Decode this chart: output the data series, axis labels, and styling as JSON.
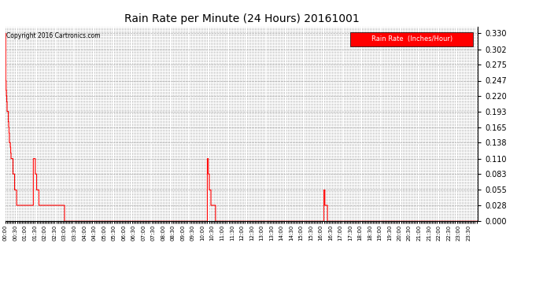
{
  "title": "Rain Rate per Minute (24 Hours) 20161001",
  "copyright_text": "Copyright 2016 Cartronics.com",
  "legend_label": "Rain Rate  (Inches/Hour)",
  "legend_bg": "#ff0000",
  "legend_text_color": "#ffffff",
  "line_color": "#ff0000",
  "background_color": "#ffffff",
  "grid_color": "#aaaaaa",
  "yticks": [
    0.0,
    0.028,
    0.055,
    0.083,
    0.11,
    0.138,
    0.165,
    0.193,
    0.22,
    0.247,
    0.275,
    0.302,
    0.33
  ],
  "ylim": [
    0.0,
    0.342
  ],
  "total_minutes": 1440,
  "rain_data": [
    [
      0,
      0.33
    ],
    [
      1,
      0.247
    ],
    [
      2,
      0.23
    ],
    [
      3,
      0.22
    ],
    [
      4,
      0.21
    ],
    [
      5,
      0.193
    ],
    [
      6,
      0.193
    ],
    [
      7,
      0.193
    ],
    [
      8,
      0.193
    ],
    [
      9,
      0.175
    ],
    [
      10,
      0.165
    ],
    [
      11,
      0.155
    ],
    [
      12,
      0.138
    ],
    [
      13,
      0.138
    ],
    [
      14,
      0.138
    ],
    [
      15,
      0.13
    ],
    [
      16,
      0.12
    ],
    [
      17,
      0.11
    ],
    [
      18,
      0.11
    ],
    [
      19,
      0.11
    ],
    [
      20,
      0.11
    ],
    [
      21,
      0.11
    ],
    [
      22,
      0.11
    ],
    [
      23,
      0.083
    ],
    [
      24,
      0.083
    ],
    [
      25,
      0.083
    ],
    [
      26,
      0.083
    ],
    [
      27,
      0.083
    ],
    [
      28,
      0.055
    ],
    [
      29,
      0.055
    ],
    [
      30,
      0.055
    ],
    [
      31,
      0.055
    ],
    [
      32,
      0.055
    ],
    [
      33,
      0.055
    ],
    [
      34,
      0.028
    ],
    [
      35,
      0.028
    ],
    [
      36,
      0.028
    ],
    [
      37,
      0.028
    ],
    [
      38,
      0.028
    ],
    [
      39,
      0.028
    ],
    [
      40,
      0.028
    ],
    [
      41,
      0.028
    ],
    [
      42,
      0.028
    ],
    [
      43,
      0.028
    ],
    [
      44,
      0.028
    ],
    [
      45,
      0.028
    ],
    [
      46,
      0.028
    ],
    [
      47,
      0.028
    ],
    [
      48,
      0.028
    ],
    [
      49,
      0.028
    ],
    [
      50,
      0.028
    ],
    [
      51,
      0.028
    ],
    [
      52,
      0.028
    ],
    [
      53,
      0.028
    ],
    [
      54,
      0.028
    ],
    [
      55,
      0.028
    ],
    [
      56,
      0.028
    ],
    [
      57,
      0.028
    ],
    [
      58,
      0.028
    ],
    [
      59,
      0.028
    ],
    [
      60,
      0.028
    ],
    [
      61,
      0.028
    ],
    [
      62,
      0.028
    ],
    [
      63,
      0.028
    ],
    [
      64,
      0.028
    ],
    [
      65,
      0.028
    ],
    [
      66,
      0.028
    ],
    [
      67,
      0.028
    ],
    [
      68,
      0.028
    ],
    [
      69,
      0.028
    ],
    [
      70,
      0.028
    ],
    [
      71,
      0.028
    ],
    [
      72,
      0.028
    ],
    [
      73,
      0.028
    ],
    [
      74,
      0.028
    ],
    [
      75,
      0.028
    ],
    [
      76,
      0.028
    ],
    [
      77,
      0.028
    ],
    [
      78,
      0.028
    ],
    [
      79,
      0.028
    ],
    [
      80,
      0.028
    ],
    [
      81,
      0.028
    ],
    [
      82,
      0.028
    ],
    [
      83,
      0.028
    ],
    [
      84,
      0.028
    ],
    [
      85,
      0.11
    ],
    [
      86,
      0.11
    ],
    [
      87,
      0.11
    ],
    [
      88,
      0.11
    ],
    [
      89,
      0.11
    ],
    [
      90,
      0.11
    ],
    [
      91,
      0.083
    ],
    [
      92,
      0.083
    ],
    [
      93,
      0.083
    ],
    [
      94,
      0.083
    ],
    [
      95,
      0.055
    ],
    [
      96,
      0.055
    ],
    [
      97,
      0.055
    ],
    [
      98,
      0.055
    ],
    [
      99,
      0.055
    ],
    [
      100,
      0.055
    ],
    [
      101,
      0.055
    ],
    [
      102,
      0.028
    ],
    [
      103,
      0.028
    ],
    [
      104,
      0.028
    ],
    [
      105,
      0.028
    ],
    [
      106,
      0.028
    ],
    [
      107,
      0.028
    ],
    [
      108,
      0.028
    ],
    [
      109,
      0.028
    ],
    [
      110,
      0.028
    ],
    [
      111,
      0.028
    ],
    [
      112,
      0.028
    ],
    [
      113,
      0.028
    ],
    [
      114,
      0.028
    ],
    [
      115,
      0.028
    ],
    [
      116,
      0.028
    ],
    [
      117,
      0.028
    ],
    [
      118,
      0.028
    ],
    [
      119,
      0.028
    ],
    [
      120,
      0.028
    ],
    [
      121,
      0.028
    ],
    [
      122,
      0.028
    ],
    [
      123,
      0.028
    ],
    [
      124,
      0.028
    ],
    [
      125,
      0.028
    ],
    [
      126,
      0.028
    ],
    [
      127,
      0.028
    ],
    [
      128,
      0.028
    ],
    [
      129,
      0.028
    ],
    [
      130,
      0.028
    ],
    [
      131,
      0.028
    ],
    [
      132,
      0.028
    ],
    [
      133,
      0.028
    ],
    [
      134,
      0.028
    ],
    [
      135,
      0.028
    ],
    [
      136,
      0.028
    ],
    [
      137,
      0.028
    ],
    [
      138,
      0.028
    ],
    [
      139,
      0.028
    ],
    [
      140,
      0.028
    ],
    [
      141,
      0.028
    ],
    [
      142,
      0.028
    ],
    [
      143,
      0.028
    ],
    [
      144,
      0.028
    ],
    [
      145,
      0.028
    ],
    [
      146,
      0.028
    ],
    [
      147,
      0.028
    ],
    [
      148,
      0.028
    ],
    [
      149,
      0.028
    ],
    [
      150,
      0.028
    ],
    [
      151,
      0.028
    ],
    [
      152,
      0.028
    ],
    [
      153,
      0.028
    ],
    [
      154,
      0.028
    ],
    [
      155,
      0.028
    ],
    [
      156,
      0.028
    ],
    [
      157,
      0.028
    ],
    [
      158,
      0.028
    ],
    [
      159,
      0.028
    ],
    [
      160,
      0.028
    ],
    [
      161,
      0.028
    ],
    [
      162,
      0.028
    ],
    [
      163,
      0.028
    ],
    [
      164,
      0.028
    ],
    [
      165,
      0.028
    ],
    [
      166,
      0.028
    ],
    [
      167,
      0.028
    ],
    [
      168,
      0.028
    ],
    [
      169,
      0.028
    ],
    [
      170,
      0.028
    ],
    [
      171,
      0.028
    ],
    [
      172,
      0.028
    ],
    [
      173,
      0.028
    ],
    [
      174,
      0.028
    ],
    [
      175,
      0.028
    ],
    [
      176,
      0.028
    ],
    [
      177,
      0.028
    ],
    [
      178,
      0.028
    ],
    [
      179,
      0.028
    ],
    [
      615,
      0.11
    ],
    [
      616,
      0.11
    ],
    [
      617,
      0.11
    ],
    [
      618,
      0.083
    ],
    [
      619,
      0.083
    ],
    [
      620,
      0.083
    ],
    [
      621,
      0.055
    ],
    [
      622,
      0.055
    ],
    [
      623,
      0.055
    ],
    [
      624,
      0.055
    ],
    [
      625,
      0.055
    ],
    [
      626,
      0.028
    ],
    [
      627,
      0.028
    ],
    [
      628,
      0.028
    ],
    [
      629,
      0.028
    ],
    [
      630,
      0.028
    ],
    [
      631,
      0.028
    ],
    [
      632,
      0.028
    ],
    [
      633,
      0.028
    ],
    [
      634,
      0.028
    ],
    [
      635,
      0.028
    ],
    [
      636,
      0.028
    ],
    [
      637,
      0.028
    ],
    [
      638,
      0.028
    ],
    [
      639,
      0.028
    ],
    [
      970,
      0.055
    ],
    [
      971,
      0.055
    ],
    [
      972,
      0.055
    ],
    [
      973,
      0.028
    ],
    [
      974,
      0.028
    ],
    [
      975,
      0.028
    ],
    [
      976,
      0.028
    ],
    [
      977,
      0.028
    ],
    [
      978,
      0.028
    ],
    [
      979,
      0.028
    ],
    [
      980,
      0.028
    ]
  ],
  "figsize": [
    6.9,
    3.75
  ],
  "dpi": 100
}
